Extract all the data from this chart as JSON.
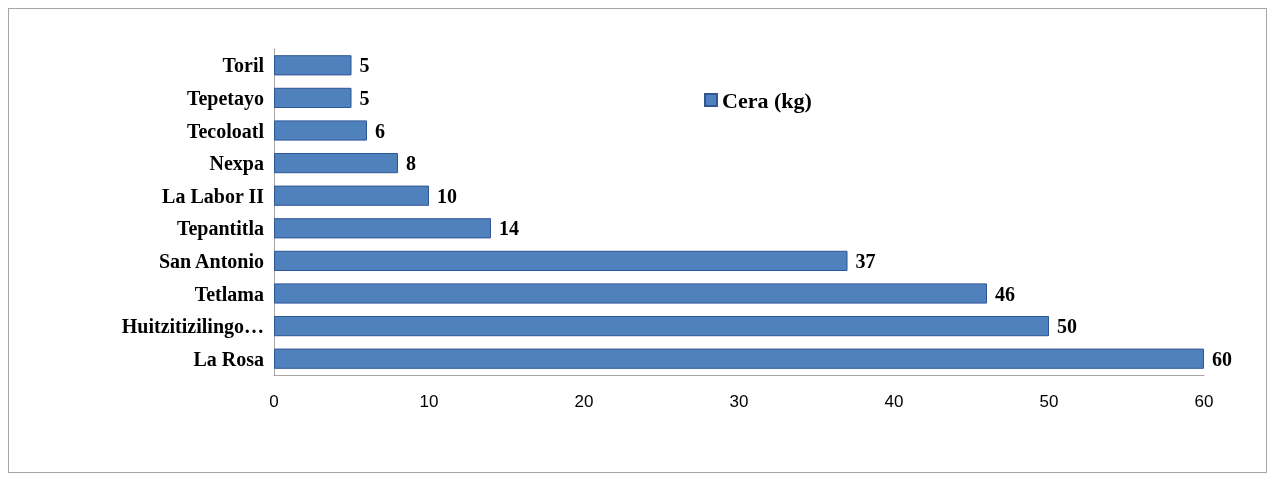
{
  "chart_data": {
    "type": "bar",
    "orientation": "horizontal",
    "categories": [
      "Toril",
      "Tepetayo",
      "Tecoloatl",
      "Nexpa",
      "La Labor II",
      "Tepantitla",
      "San Antonio",
      "Tetlama",
      "Huitzitizilingo…",
      "La Rosa"
    ],
    "series": [
      {
        "name": "Cera (kg)",
        "color": "#4f81bd",
        "values": [
          5,
          5,
          6,
          8,
          10,
          14,
          37,
          46,
          50,
          60
        ]
      }
    ],
    "xlim": [
      0,
      60
    ],
    "xticks": [
      0,
      10,
      20,
      30,
      40,
      50,
      60
    ],
    "grid": false,
    "legend": "top right",
    "data_labels": true
  }
}
